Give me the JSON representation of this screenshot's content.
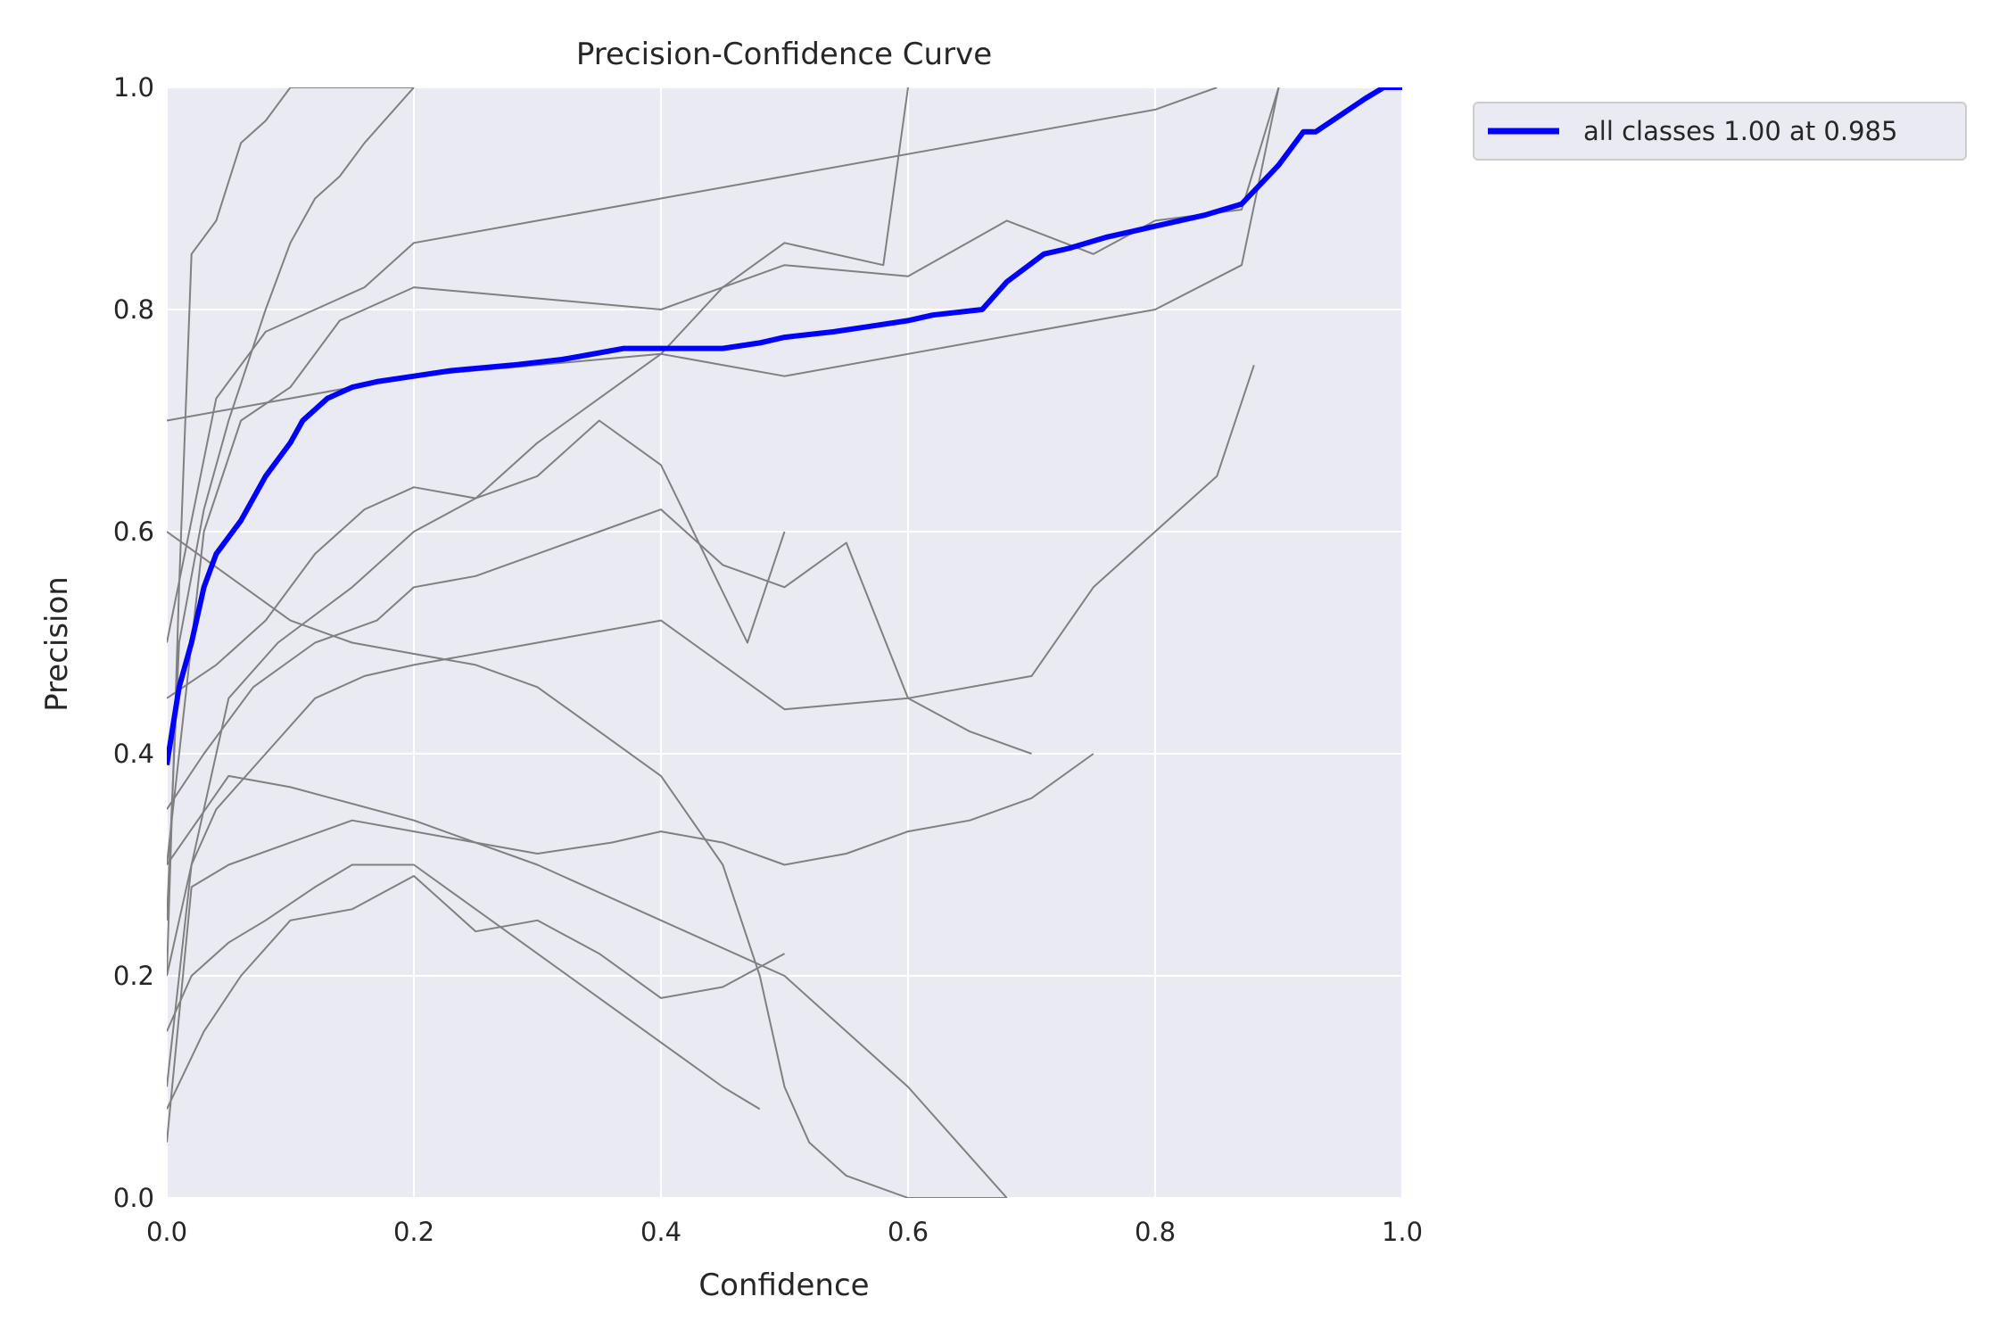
{
  "chart_data": {
    "type": "line",
    "title": "Precision-Confidence Curve",
    "xlabel": "Confidence",
    "ylabel": "Precision",
    "xlim": [
      0.0,
      1.0
    ],
    "ylim": [
      0.0,
      1.0
    ],
    "grid": true,
    "legend_position": "outside-top-right",
    "x_ticks": [
      "0.0",
      "0.2",
      "0.4",
      "0.6",
      "0.8",
      "1.0"
    ],
    "y_ticks": [
      "0.0",
      "0.2",
      "0.4",
      "0.6",
      "0.8",
      "1.0"
    ],
    "colors": {
      "background": "#EAEAF2",
      "grid": "#FFFFFF",
      "class_curves": "#808080",
      "all_classes": "#0000FF"
    },
    "series": [
      {
        "name": "all classes 1.00 at 0.985",
        "role": "all_classes",
        "x": [
          0.0,
          0.01,
          0.02,
          0.03,
          0.04,
          0.06,
          0.08,
          0.1,
          0.11,
          0.13,
          0.15,
          0.17,
          0.2,
          0.23,
          0.28,
          0.32,
          0.37,
          0.41,
          0.45,
          0.48,
          0.5,
          0.54,
          0.57,
          0.6,
          0.62,
          0.66,
          0.68,
          0.71,
          0.73,
          0.76,
          0.8,
          0.84,
          0.87,
          0.9,
          0.92,
          0.93,
          0.95,
          0.97,
          0.985,
          1.0
        ],
        "y": [
          0.39,
          0.46,
          0.5,
          0.55,
          0.58,
          0.61,
          0.65,
          0.68,
          0.7,
          0.72,
          0.73,
          0.735,
          0.74,
          0.745,
          0.75,
          0.755,
          0.765,
          0.765,
          0.765,
          0.77,
          0.775,
          0.78,
          0.785,
          0.79,
          0.795,
          0.8,
          0.825,
          0.85,
          0.855,
          0.865,
          0.875,
          0.885,
          0.895,
          0.93,
          0.96,
          0.96,
          0.975,
          0.99,
          1.0,
          1.0
        ]
      },
      {
        "role": "class",
        "x": [
          0.0,
          0.03,
          0.06,
          0.1,
          0.14,
          0.2,
          0.3,
          0.4,
          0.5,
          0.6,
          0.68,
          0.75,
          0.8,
          0.87,
          0.9
        ],
        "y": [
          0.3,
          0.6,
          0.7,
          0.73,
          0.79,
          0.82,
          0.81,
          0.8,
          0.84,
          0.83,
          0.88,
          0.85,
          0.88,
          0.89,
          1.0
        ]
      },
      {
        "role": "class",
        "x": [
          0.0,
          0.01,
          0.02,
          0.04,
          0.06,
          0.08,
          0.1,
          0.12,
          0.15,
          0.2
        ],
        "y": [
          0.2,
          0.55,
          0.85,
          0.88,
          0.95,
          0.97,
          1.0,
          1.0,
          1.0,
          1.0
        ]
      },
      {
        "role": "class",
        "x": [
          0.0,
          0.02,
          0.05,
          0.09,
          0.15,
          0.2,
          0.25,
          0.3,
          0.35,
          0.4,
          0.45,
          0.5,
          0.58,
          0.6
        ],
        "y": [
          0.1,
          0.3,
          0.45,
          0.5,
          0.55,
          0.6,
          0.63,
          0.68,
          0.72,
          0.76,
          0.82,
          0.86,
          0.84,
          1.0
        ]
      },
      {
        "role": "class",
        "x": [
          0.0,
          0.01,
          0.03,
          0.05,
          0.08,
          0.1,
          0.12,
          0.14,
          0.16,
          0.2
        ],
        "y": [
          0.25,
          0.5,
          0.62,
          0.7,
          0.8,
          0.86,
          0.9,
          0.92,
          0.95,
          1.0
        ]
      },
      {
        "role": "class",
        "x": [
          0.0,
          0.02,
          0.05,
          0.1,
          0.15,
          0.2,
          0.25,
          0.3,
          0.36,
          0.4,
          0.45,
          0.5,
          0.55,
          0.6,
          0.65,
          0.7,
          0.75
        ],
        "y": [
          0.05,
          0.28,
          0.3,
          0.32,
          0.34,
          0.33,
          0.32,
          0.31,
          0.32,
          0.33,
          0.32,
          0.3,
          0.31,
          0.33,
          0.34,
          0.36,
          0.4
        ]
      },
      {
        "role": "class",
        "x": [
          0.0,
          0.04,
          0.08,
          0.12,
          0.16,
          0.2,
          0.25,
          0.3,
          0.35,
          0.4,
          0.47,
          0.5
        ],
        "y": [
          0.45,
          0.48,
          0.52,
          0.58,
          0.62,
          0.64,
          0.63,
          0.65,
          0.7,
          0.66,
          0.5,
          0.6
        ]
      },
      {
        "role": "class",
        "x": [
          0.0,
          0.05,
          0.1,
          0.15,
          0.2,
          0.25,
          0.3,
          0.35,
          0.4,
          0.45,
          0.48,
          0.5,
          0.52,
          0.55,
          0.6,
          0.68
        ],
        "y": [
          0.6,
          0.56,
          0.52,
          0.5,
          0.49,
          0.48,
          0.46,
          0.42,
          0.38,
          0.3,
          0.2,
          0.1,
          0.05,
          0.02,
          0.0,
          0.0
        ]
      },
      {
        "role": "class",
        "x": [
          0.0,
          0.02,
          0.04,
          0.08,
          0.12,
          0.16,
          0.2,
          0.3,
          0.4,
          0.5,
          0.6,
          0.7,
          0.75,
          0.8,
          0.85,
          0.88
        ],
        "y": [
          0.2,
          0.3,
          0.35,
          0.4,
          0.45,
          0.47,
          0.48,
          0.5,
          0.52,
          0.44,
          0.45,
          0.47,
          0.55,
          0.6,
          0.65,
          0.75
        ]
      },
      {
        "role": "class",
        "x": [
          0.0,
          0.03,
          0.07,
          0.12,
          0.17,
          0.2,
          0.25,
          0.3,
          0.35,
          0.4,
          0.45,
          0.5,
          0.55,
          0.6,
          0.65,
          0.7
        ],
        "y": [
          0.35,
          0.4,
          0.46,
          0.5,
          0.52,
          0.55,
          0.56,
          0.58,
          0.6,
          0.62,
          0.57,
          0.55,
          0.59,
          0.45,
          0.42,
          0.4
        ]
      },
      {
        "role": "class",
        "x": [
          0.0,
          0.05,
          0.1,
          0.2,
          0.3,
          0.4,
          0.5,
          0.55,
          0.6,
          0.64,
          0.68
        ],
        "y": [
          0.3,
          0.38,
          0.37,
          0.34,
          0.3,
          0.25,
          0.2,
          0.15,
          0.1,
          0.05,
          0.0
        ]
      },
      {
        "role": "class",
        "x": [
          0.0,
          0.03,
          0.06,
          0.1,
          0.15,
          0.2,
          0.25,
          0.3,
          0.35,
          0.4,
          0.45,
          0.5
        ],
        "y": [
          0.08,
          0.15,
          0.2,
          0.25,
          0.26,
          0.29,
          0.24,
          0.25,
          0.22,
          0.18,
          0.19,
          0.22
        ]
      },
      {
        "role": "class",
        "x": [
          0.0,
          0.02,
          0.05,
          0.08,
          0.12,
          0.15,
          0.2,
          0.25,
          0.3,
          0.35,
          0.4,
          0.45,
          0.48
        ],
        "y": [
          0.15,
          0.2,
          0.23,
          0.25,
          0.28,
          0.3,
          0.3,
          0.26,
          0.22,
          0.18,
          0.14,
          0.1,
          0.08
        ]
      },
      {
        "role": "class",
        "x": [
          0.0,
          0.1,
          0.2,
          0.3,
          0.4,
          0.5,
          0.6,
          0.7,
          0.8,
          0.87,
          0.9
        ],
        "y": [
          0.7,
          0.72,
          0.74,
          0.75,
          0.76,
          0.74,
          0.76,
          0.78,
          0.8,
          0.84,
          1.0
        ]
      },
      {
        "role": "class",
        "x": [
          0.0,
          0.04,
          0.08,
          0.12,
          0.16,
          0.2,
          0.3,
          0.4,
          0.5,
          0.6,
          0.7,
          0.8,
          0.85
        ],
        "y": [
          0.5,
          0.72,
          0.78,
          0.8,
          0.82,
          0.86,
          0.88,
          0.9,
          0.92,
          0.94,
          0.96,
          0.98,
          1.0
        ]
      }
    ]
  }
}
